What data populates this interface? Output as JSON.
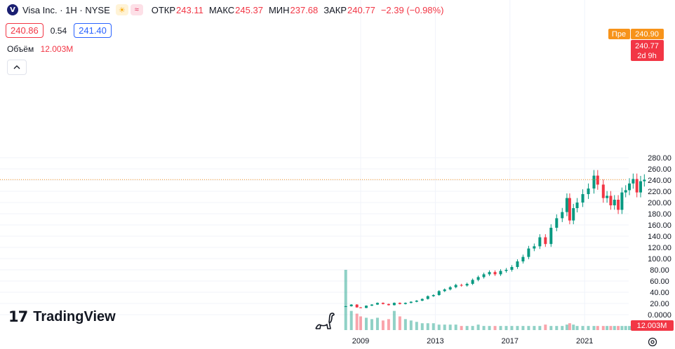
{
  "symbol": {
    "logo_letter": "V",
    "title": "Visa Inc. · 1H · NYSE",
    "icon_session": "sun-icon",
    "icon_events": "wave-icon"
  },
  "ohlc": {
    "open_label": "ОТКР",
    "open": "243.11",
    "high_label": "МАКС",
    "high": "245.37",
    "low_label": "МИН",
    "low": "237.68",
    "close_label": "ЗАКР",
    "close": "240.77",
    "change": "−2.39 (−0.98%)"
  },
  "quote": {
    "sell": "240.86",
    "spread": "0.54",
    "buy": "241.40"
  },
  "volume": {
    "label": "Объём",
    "value": "12.003M"
  },
  "collapse_icon": "chevron-up-icon",
  "branding": {
    "logo_mark": "17",
    "name": "TradingView"
  },
  "price_labels": {
    "pre_tag": "Пре",
    "pre_value": "240.90",
    "last_value": "240.77",
    "countdown": "2d 9h",
    "volume_last": "12.003M"
  },
  "colors": {
    "up": "#089981",
    "down": "#f23645",
    "pre": "#f7931a",
    "grid": "#f0f3fa"
  },
  "chart_data": {
    "type": "candlestick",
    "y_ticks": [
      "0.0000",
      "20.00",
      "40.00",
      "60.00",
      "80.00",
      "100.00",
      "120.00",
      "140.00",
      "160.00",
      "180.00",
      "200.00",
      "220.00",
      "240.00",
      "260.00",
      "280.00"
    ],
    "x_ticks": [
      "2009",
      "2013",
      "2017",
      "2021"
    ],
    "ylim": [
      0,
      280
    ],
    "x": [
      2008.2,
      2008.5,
      2008.8,
      2009.0,
      2009.3,
      2009.6,
      2009.9,
      2010.2,
      2010.5,
      2010.8,
      2011.1,
      2011.4,
      2011.7,
      2012.0,
      2012.3,
      2012.6,
      2012.9,
      2013.2,
      2013.5,
      2013.8,
      2014.1,
      2014.4,
      2014.7,
      2015.0,
      2015.3,
      2015.6,
      2015.9,
      2016.2,
      2016.5,
      2016.8,
      2017.1,
      2017.4,
      2017.7,
      2018.0,
      2018.3,
      2018.6,
      2018.9,
      2019.2,
      2019.5,
      2019.8,
      2020.05,
      2020.2,
      2020.4,
      2020.6,
      2020.9,
      2021.2,
      2021.5,
      2021.7,
      2022.0,
      2022.2,
      2022.4,
      2022.6,
      2022.8,
      2023.0,
      2023.2,
      2023.4,
      2023.6,
      2023.8,
      2024.0,
      2024.2
    ],
    "close": [
      15,
      18,
      13,
      12,
      16,
      18,
      21,
      19,
      17,
      21,
      19,
      21,
      23,
      25,
      28,
      33,
      35,
      42,
      45,
      49,
      53,
      52,
      55,
      62,
      67,
      72,
      76,
      72,
      78,
      80,
      85,
      95,
      103,
      118,
      122,
      138,
      126,
      155,
      172,
      183,
      208,
      168,
      190,
      200,
      215,
      225,
      248,
      232,
      208,
      212,
      195,
      205,
      187,
      218,
      222,
      234,
      242,
      218,
      238,
      240.77
    ],
    "volume": [
      44,
      14,
      12,
      10,
      9,
      8,
      9,
      7,
      8,
      14,
      10,
      8,
      7,
      6,
      5,
      5,
      5,
      4,
      4,
      4,
      4,
      3,
      3,
      3,
      4,
      3,
      3,
      3,
      3,
      3,
      3,
      3,
      3,
      3,
      3,
      3,
      4,
      3,
      3,
      3,
      4,
      5,
      4,
      3,
      3,
      3,
      3,
      3,
      3,
      3,
      3,
      3,
      3,
      3,
      3,
      3,
      3,
      3,
      3,
      3
    ]
  }
}
